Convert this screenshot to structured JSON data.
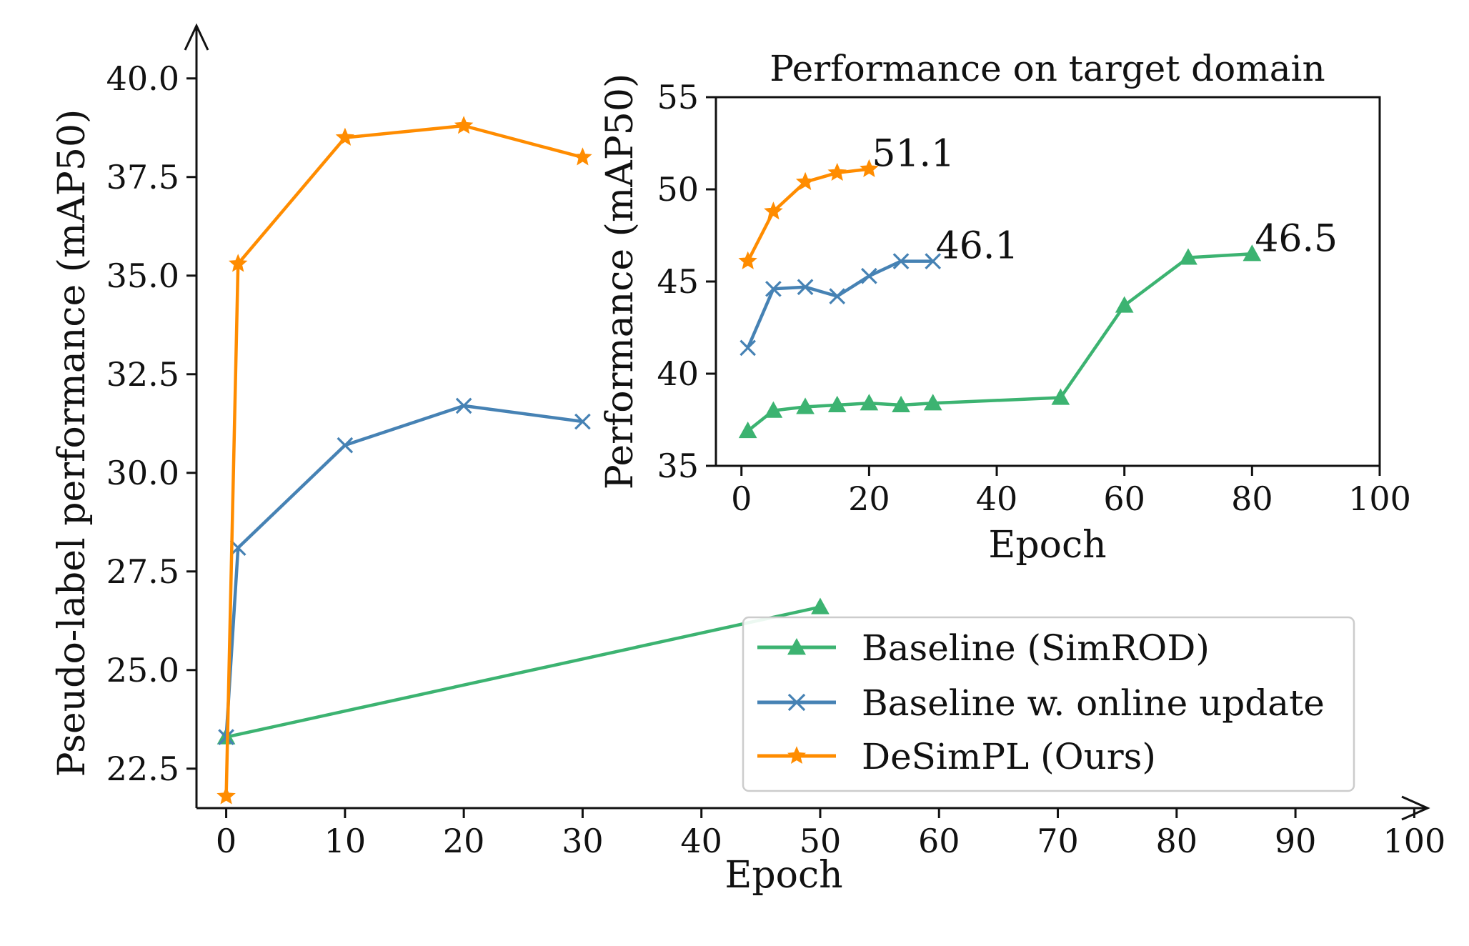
{
  "colors": {
    "baseline": "#3cb371",
    "online": "#4682b4",
    "desimpl": "#ff8c00"
  },
  "legend": {
    "placement": "lower-right",
    "entries": [
      {
        "label": "Baseline (SimROD)",
        "series": "baseline",
        "marker": "triangle"
      },
      {
        "label": "Baseline w. online update",
        "series": "online",
        "marker": "x"
      },
      {
        "label": "DeSimPL (Ours)",
        "series": "desimpl",
        "marker": "star"
      }
    ]
  },
  "chart_data": [
    {
      "id": "main",
      "type": "line",
      "title": "",
      "xlabel": "Epoch",
      "ylabel": "Pseudo-label performance (mAP50)",
      "xlim": [
        -2.5,
        101
      ],
      "ylim": [
        21.5,
        41.3
      ],
      "xticks": [
        0,
        10,
        20,
        30,
        40,
        50,
        60,
        70,
        80,
        90,
        100
      ],
      "yticks": [
        22.5,
        25.0,
        27.5,
        30.0,
        32.5,
        35.0,
        37.5,
        40.0
      ],
      "xtick_labels": [
        "0",
        "10",
        "20",
        "30",
        "40",
        "50",
        "60",
        "70",
        "80",
        "90",
        "100"
      ],
      "ytick_labels": [
        "22.5",
        "25.0",
        "27.5",
        "30.0",
        "32.5",
        "35.0",
        "37.5",
        "40.0"
      ],
      "grid": false,
      "series": [
        {
          "key": "baseline",
          "name": "Baseline (SimROD)",
          "marker": "triangle",
          "x": [
            0,
            50
          ],
          "y": [
            23.3,
            26.6
          ]
        },
        {
          "key": "online",
          "name": "Baseline w. online update",
          "marker": "x",
          "x": [
            0,
            1,
            10,
            20,
            30
          ],
          "y": [
            23.3,
            28.1,
            30.7,
            31.7,
            31.3
          ]
        },
        {
          "key": "desimpl",
          "name": "DeSimPL (Ours)",
          "marker": "star",
          "x": [
            0,
            1,
            10,
            20,
            30
          ],
          "y": [
            21.8,
            35.3,
            38.5,
            38.8,
            38.0
          ]
        }
      ]
    },
    {
      "id": "inset",
      "type": "line",
      "title": "Performance on target domain",
      "xlabel": "Epoch",
      "ylabel": "Performance (mAP50)",
      "xlim": [
        -4,
        100
      ],
      "ylim": [
        35,
        55
      ],
      "xticks": [
        0,
        20,
        40,
        60,
        80,
        100
      ],
      "yticks": [
        35,
        40,
        45,
        50,
        55
      ],
      "xtick_labels": [
        "0",
        "20",
        "40",
        "60",
        "80",
        "100"
      ],
      "ytick_labels": [
        "35",
        "40",
        "45",
        "50",
        "55"
      ],
      "grid": false,
      "series": [
        {
          "key": "baseline",
          "name": "Baseline (SimROD)",
          "marker": "triangle",
          "x": [
            1,
            5,
            10,
            15,
            20,
            25,
            30,
            50,
            60,
            70,
            80
          ],
          "y": [
            36.9,
            38.0,
            38.2,
            38.3,
            38.4,
            38.3,
            38.4,
            38.7,
            43.7,
            46.3,
            46.5
          ]
        },
        {
          "key": "online",
          "name": "Baseline w. online update",
          "marker": "x",
          "x": [
            1,
            5,
            10,
            15,
            20,
            25,
            30
          ],
          "y": [
            41.4,
            44.6,
            44.7,
            44.2,
            45.3,
            46.1,
            46.1
          ]
        },
        {
          "key": "desimpl",
          "name": "DeSimPL (Ours)",
          "marker": "star",
          "x": [
            1,
            5,
            10,
            15,
            20
          ],
          "y": [
            46.1,
            48.8,
            50.4,
            50.9,
            51.1
          ]
        }
      ],
      "annotations": [
        {
          "text": "51.1",
          "x": 20,
          "y": 51.1,
          "series": "desimpl"
        },
        {
          "text": "46.1",
          "x": 30,
          "y": 46.1,
          "series": "online"
        },
        {
          "text": "46.5",
          "x": 80,
          "y": 46.5,
          "series": "baseline"
        }
      ]
    }
  ]
}
